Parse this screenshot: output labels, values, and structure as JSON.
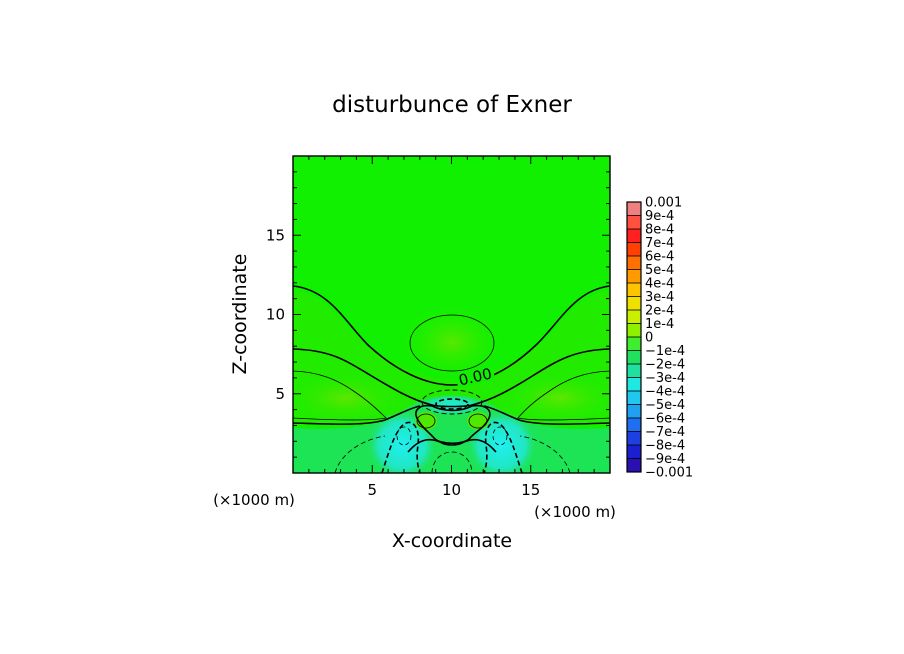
{
  "chart_data": {
    "type": "heatmap",
    "title": "disturbunce of Exner",
    "xlabel": "X-coordinate",
    "ylabel": "Z-coordinate",
    "x_unit": "(×1000 m)",
    "y_unit": "(×1000 m)",
    "xlim": [
      0,
      20
    ],
    "ylim": [
      0,
      20
    ],
    "x_ticks": [
      5,
      10,
      15
    ],
    "y_ticks": [
      5,
      10,
      15
    ],
    "contour_label": "0.00",
    "colorbar": {
      "levels": [
        "0.001",
        "9e-4",
        "8e-4",
        "7e-4",
        "6e-4",
        "5e-4",
        "4e-4",
        "3e-4",
        "2e-4",
        "1e-4",
        "0",
        "−1e-4",
        "−2e-4",
        "−3e-4",
        "−4e-4",
        "−5e-4",
        "−6e-4",
        "−7e-4",
        "−8e-4",
        "−9e-4",
        "−0.001"
      ],
      "colors": [
        "#f08080",
        "#ff5040",
        "#ff2020",
        "#ff4000",
        "#ff7000",
        "#ff9a00",
        "#ffc400",
        "#f0e000",
        "#c8f000",
        "#90f000",
        "#40ee30",
        "#20e060",
        "#20e0a0",
        "#20e8e0",
        "#20c8f0",
        "#20a0f0",
        "#1e70f0",
        "#1e40e0",
        "#1a20d0",
        "#2a10b0",
        "#6a20a0"
      ]
    },
    "field_colors": {
      "positive": "#10f000",
      "weak_positive": "#30ea00",
      "max": "#50e800",
      "weak_negative": "#20e070",
      "negative": "#20e6b8",
      "min": "#20f0e0"
    }
  }
}
